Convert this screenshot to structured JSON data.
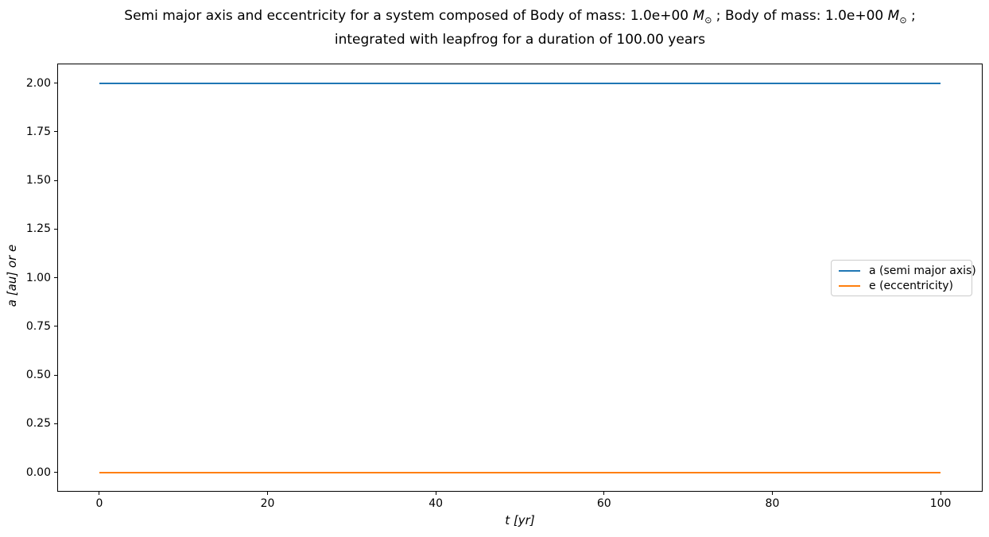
{
  "figure": {
    "title": {
      "line1_parts": [
        {
          "text": "Semi major axis and eccentricity for a system composed of Body of mass: 1.0e+00 ",
          "style": "plain"
        },
        {
          "text": "M",
          "style": "italic"
        },
        {
          "text": "⊙",
          "style": "sub"
        },
        {
          "text": " ; Body of mass: 1.0e+00 ",
          "style": "plain"
        },
        {
          "text": "M",
          "style": "italic"
        },
        {
          "text": "⊙",
          "style": "sub"
        },
        {
          "text": " ;",
          "style": "plain"
        }
      ],
      "line1_text": "Semi major axis and eccentricity for a system composed of Body of mass: 1.0e+00 M⊙ ; Body of mass: 1.0e+00 M⊙ ;",
      "line2": "integrated with leapfrog for a duration of 100.00 years"
    }
  },
  "chart_data": {
    "type": "line",
    "title": "Semi major axis and eccentricity for a system composed of Body of mass: 1.0e+00 M⊙ ; Body of mass: 1.0e+00 M⊙ ; integrated with leapfrog for a duration of 100.00 years",
    "xlabel": "t [yr]",
    "ylabel": "a [au] or e",
    "xlim": [
      -5,
      105
    ],
    "ylim": [
      -0.1,
      2.1
    ],
    "grid": false,
    "x_ticks": [
      {
        "v": 0,
        "label": "0"
      },
      {
        "v": 20,
        "label": "20"
      },
      {
        "v": 40,
        "label": "40"
      },
      {
        "v": 60,
        "label": "60"
      },
      {
        "v": 80,
        "label": "80"
      },
      {
        "v": 100,
        "label": "100"
      }
    ],
    "y_ticks": [
      {
        "v": 0.0,
        "label": "0.00"
      },
      {
        "v": 0.25,
        "label": "0.25"
      },
      {
        "v": 0.5,
        "label": "0.50"
      },
      {
        "v": 0.75,
        "label": "0.75"
      },
      {
        "v": 1.0,
        "label": "1.00"
      },
      {
        "v": 1.25,
        "label": "1.25"
      },
      {
        "v": 1.5,
        "label": "1.50"
      },
      {
        "v": 1.75,
        "label": "1.75"
      },
      {
        "v": 2.0,
        "label": "2.00"
      }
    ],
    "legend": {
      "position": "center right",
      "border_color": "#cccccc"
    },
    "series": [
      {
        "key": "a",
        "name": "a (semi major axis)",
        "color": "#1f77b4",
        "x": [
          0,
          100
        ],
        "values": [
          2.0,
          2.0
        ]
      },
      {
        "key": "e",
        "name": "e (eccentricity)",
        "color": "#ff7f0e",
        "x": [
          0,
          100
        ],
        "values": [
          0.0,
          0.0
        ]
      }
    ]
  }
}
